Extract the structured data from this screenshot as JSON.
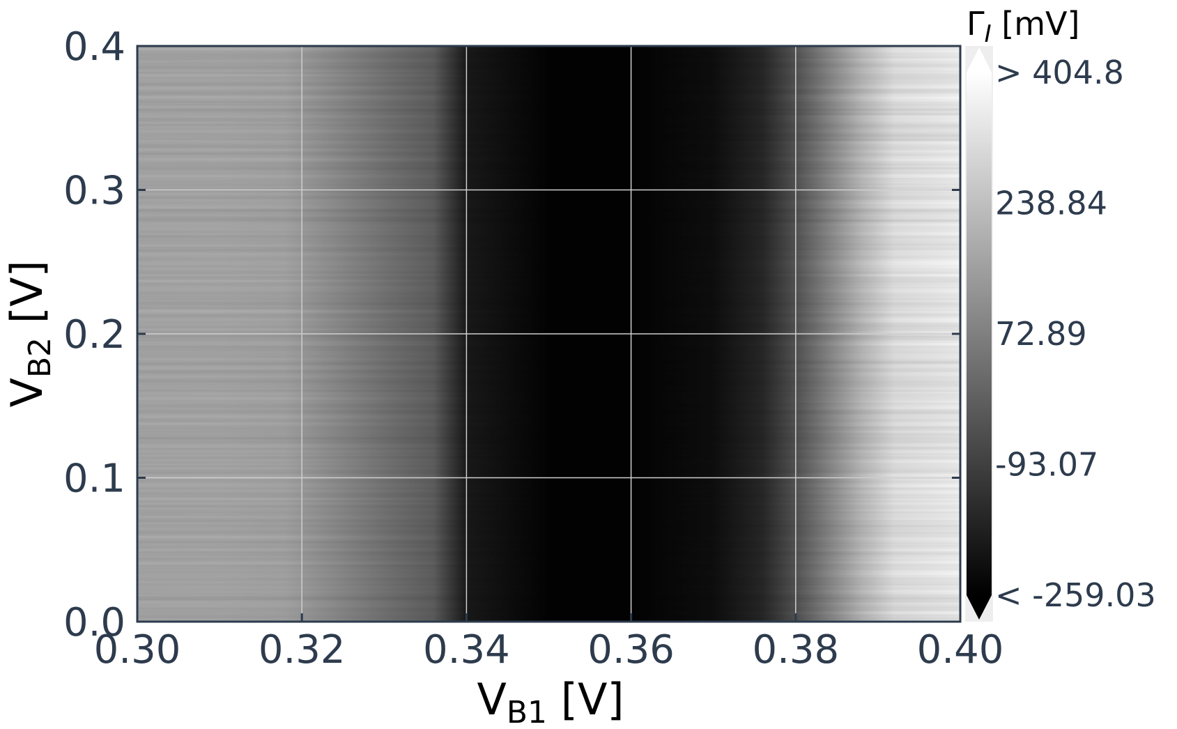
{
  "chart_data": {
    "type": "heatmap",
    "title": "",
    "x_axis": {
      "label": "V",
      "label_sub": "B1",
      "label_unit": " [V]",
      "range": [
        0.3,
        0.4
      ],
      "ticks": [
        0.3,
        0.32,
        0.34,
        0.36,
        0.38,
        0.4
      ],
      "tick_labels": [
        "0.30",
        "0.32",
        "0.34",
        "0.36",
        "0.38",
        "0.40"
      ]
    },
    "y_axis": {
      "label": "V",
      "label_sub": "B2",
      "label_unit": " [V]",
      "range": [
        0.0,
        0.4
      ],
      "ticks": [
        0.0,
        0.1,
        0.2,
        0.3,
        0.4
      ],
      "tick_labels": [
        "0.0",
        "0.1",
        "0.2",
        "0.3",
        "0.4"
      ]
    },
    "grid": true,
    "colormap": "gray",
    "colorbar": {
      "title": "Γ",
      "title_sub": "I",
      "title_unit": " [mV]",
      "range": [
        -259.03,
        404.8
      ],
      "ticks": [
        404.8,
        238.84,
        72.89,
        -93.07,
        -259.03
      ],
      "tick_labels": [
        "> 404.8",
        "238.84",
        "72.89",
        "-93.07",
        "< -259.03"
      ],
      "extend": "both"
    },
    "x_profile": {
      "x": [
        0.3,
        0.31,
        0.318,
        0.324,
        0.33,
        0.336,
        0.34,
        0.35,
        0.36,
        0.37,
        0.376,
        0.38,
        0.384,
        0.388,
        0.392,
        0.4
      ],
      "value": [
        205,
        205,
        195,
        130,
        60,
        0,
        -190,
        -250,
        -250,
        -220,
        -150,
        -30,
        110,
        250,
        360,
        400
      ]
    },
    "colors": {
      "axis": "#2d3b4d",
      "grid": "#cfcfcf",
      "low": "#000000",
      "high": "#ffffff"
    }
  }
}
